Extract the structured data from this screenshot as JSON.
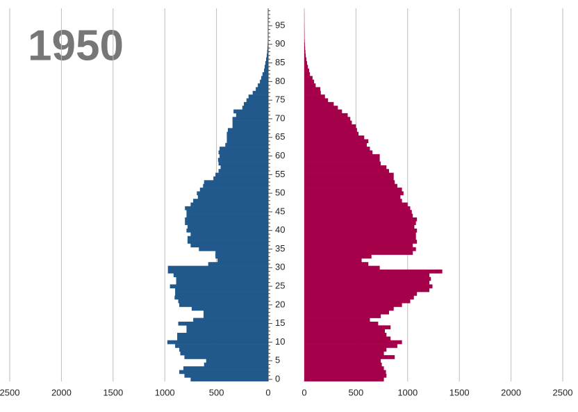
{
  "chart_data": {
    "type": "pyramid",
    "title": "1950",
    "categories": [
      0,
      null,
      null,
      null,
      null,
      5,
      null,
      null,
      null,
      null,
      10,
      null,
      null,
      null,
      null,
      15,
      null,
      null,
      null,
      null,
      20,
      null,
      null,
      null,
      null,
      25,
      null,
      null,
      null,
      null,
      30,
      null,
      null,
      null,
      null,
      35,
      null,
      null,
      null,
      null,
      40,
      null,
      null,
      null,
      null,
      45,
      null,
      null,
      null,
      null,
      50,
      null,
      null,
      null,
      null,
      55,
      null,
      null,
      null,
      null,
      60,
      null,
      null,
      null,
      null,
      65,
      null,
      null,
      null,
      null,
      70,
      null,
      null,
      null,
      null,
      75,
      null,
      null,
      null,
      null,
      80,
      null,
      null,
      null,
      null,
      85,
      null,
      null,
      null,
      null,
      90,
      null,
      null,
      null,
      null,
      95,
      null,
      null,
      null,
      null
    ],
    "xlim": [
      0,
      2500
    ],
    "xticks": [
      0,
      500,
      1000,
      1500,
      2000,
      2500
    ],
    "grid": true,
    "series": [
      {
        "side": "left",
        "color": "#22598c",
        "values": [
          750,
          810,
          860,
          820,
          620,
          600,
          810,
          850,
          860,
          900,
          975,
          880,
          880,
          790,
          790,
          870,
          725,
          625,
          625,
          740,
          860,
          870,
          905,
          900,
          900,
          950,
          890,
          890,
          915,
          970,
          970,
          580,
          490,
          510,
          510,
          670,
          750,
          780,
          780,
          750,
          790,
          780,
          805,
          805,
          790,
          790,
          805,
          750,
          725,
          680,
          690,
          660,
          630,
          620,
          530,
          510,
          480,
          460,
          480,
          485,
          470,
          480,
          470,
          415,
          400,
          400,
          400,
          390,
          345,
          345,
          345,
          310,
          335,
          250,
          235,
          210,
          190,
          150,
          120,
          100,
          80,
          67,
          55,
          40,
          34,
          27,
          20,
          14,
          10,
          7,
          5,
          3,
          2,
          2,
          1,
          1,
          1,
          0,
          0,
          0
        ]
      },
      {
        "side": "right",
        "color": "#a5004a",
        "values": [
          770,
          795,
          790,
          770,
          750,
          740,
          875,
          770,
          795,
          900,
          945,
          835,
          795,
          780,
          835,
          715,
          635,
          740,
          820,
          865,
          945,
          1025,
          1060,
          1090,
          1210,
          1240,
          1210,
          1225,
          1210,
          1335,
          730,
          620,
          555,
          650,
          1050,
          1080,
          1050,
          1090,
          1080,
          1080,
          1090,
          1065,
          1080,
          1090,
          1050,
          1040,
          1025,
          1000,
          945,
          930,
          960,
          945,
          900,
          875,
          865,
          865,
          820,
          795,
          740,
          730,
          730,
          660,
          635,
          605,
          620,
          580,
          525,
          510,
          500,
          460,
          445,
          420,
          365,
          325,
          285,
          230,
          200,
          160,
          155,
          110,
          95,
          80,
          55,
          47,
          35,
          27,
          20,
          14,
          11,
          8,
          6,
          4,
          3,
          3,
          2,
          2,
          1,
          1,
          1,
          0
        ]
      }
    ]
  }
}
